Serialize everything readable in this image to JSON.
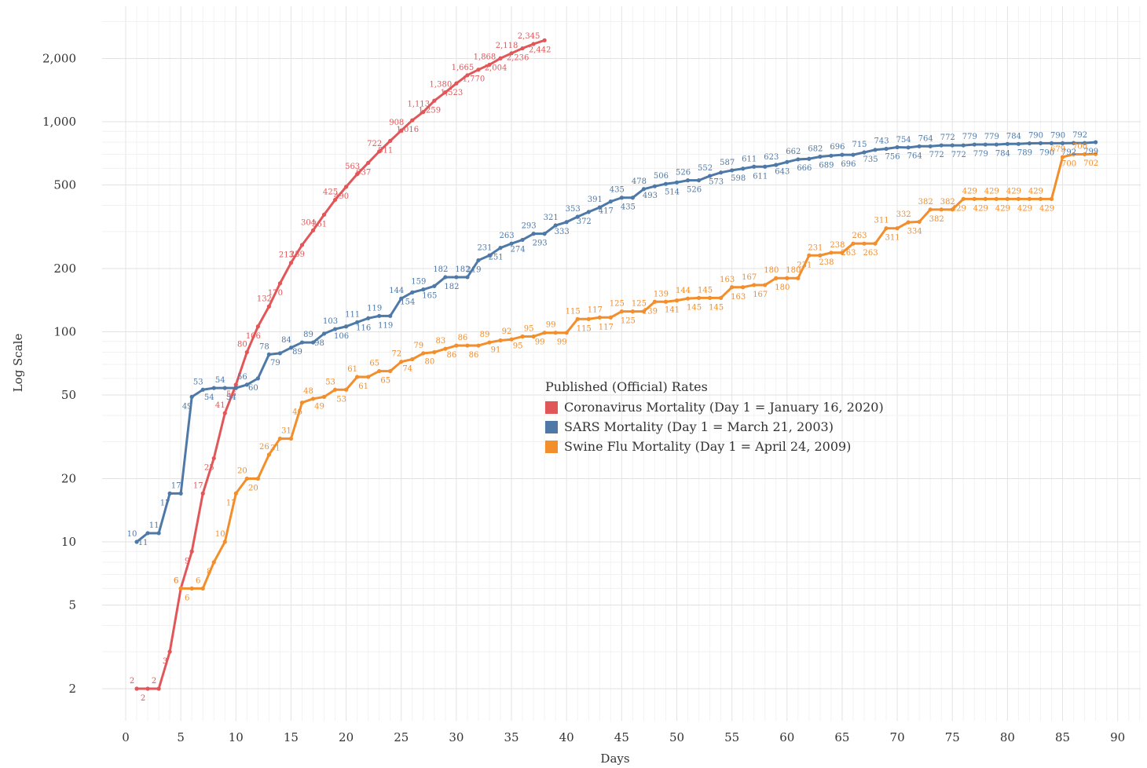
{
  "chart_data": {
    "type": "line",
    "title": "",
    "xlabel": "Days",
    "ylabel": "Log Scale",
    "yscale": "log",
    "xlim": [
      -1,
      92
    ],
    "ylim": [
      1.6,
      3300
    ],
    "xticks": [
      0,
      5,
      10,
      15,
      20,
      25,
      30,
      35,
      40,
      45,
      50,
      55,
      60,
      65,
      70,
      75,
      80,
      85,
      90
    ],
    "yticks": [
      2,
      5,
      10,
      20,
      50,
      100,
      200,
      500,
      1000,
      2000
    ],
    "ytick_labels": [
      "2",
      "5",
      "10",
      "20",
      "50",
      "100",
      "200",
      "500",
      "1,000",
      "2,000"
    ],
    "grid": true,
    "legend": {
      "title": "Published (Official) Rates",
      "placement": "center-right",
      "entries": [
        "Coronavirus Mortality (Day 1 = January 16, 2020)",
        "SARS Mortality (Day 1 = March 21, 2003)",
        "Swine Flu Mortality (Day 1 = April 24, 2009)"
      ]
    },
    "series": [
      {
        "name": "Coronavirus Mortality (Day 1 = January 16, 2020)",
        "color": "#e15759",
        "x": [
          1,
          2,
          3,
          4,
          5,
          6,
          7,
          8,
          9,
          10,
          11,
          12,
          13,
          14,
          15,
          16,
          17,
          18,
          19,
          20,
          21,
          22,
          23,
          24,
          25,
          26,
          27,
          28,
          29,
          30,
          31,
          32,
          33,
          34,
          35,
          36,
          37,
          38
        ],
        "y": [
          2,
          2,
          2,
          3,
          6,
          9,
          17,
          25,
          41,
          56,
          80,
          106,
          132,
          170,
          213,
          259,
          304,
          361,
          425,
          490,
          563,
          637,
          722,
          811,
          908,
          1016,
          1113,
          1259,
          1380,
          1523,
          1665,
          1770,
          1868,
          2004,
          2118,
          2236,
          2345,
          2442
        ]
      },
      {
        "name": "SARS Mortality (Day 1 = March 21, 2003)",
        "color": "#4e79a7",
        "x": [
          1,
          2,
          3,
          4,
          5,
          6,
          7,
          8,
          9,
          10,
          11,
          12,
          13,
          14,
          15,
          16,
          17,
          18,
          19,
          20,
          21,
          22,
          23,
          24,
          25,
          26,
          27,
          28,
          29,
          30,
          31,
          32,
          33,
          34,
          35,
          36,
          37,
          38,
          39,
          40,
          41,
          42,
          43,
          44,
          45,
          46,
          47,
          48,
          49,
          50,
          51,
          52,
          53,
          54,
          55,
          56,
          57,
          58,
          59,
          60,
          61,
          62,
          63,
          64,
          65,
          66,
          67,
          68,
          69,
          70,
          71,
          72,
          73,
          74,
          75,
          76,
          77,
          78,
          79,
          80,
          81,
          82,
          83,
          84,
          85,
          86,
          87,
          88
        ],
        "y": [
          10,
          11,
          11,
          17,
          17,
          49,
          53,
          54,
          54,
          54,
          56,
          60,
          78,
          79,
          84,
          89,
          89,
          98,
          103,
          106,
          111,
          116,
          119,
          119,
          144,
          154,
          159,
          165,
          182,
          182,
          182,
          219,
          231,
          251,
          263,
          274,
          293,
          293,
          321,
          333,
          353,
          372,
          391,
          417,
          435,
          435,
          478,
          493,
          506,
          514,
          526,
          526,
          552,
          573,
          587,
          598,
          611,
          611,
          623,
          643,
          662,
          666,
          682,
          689,
          696,
          696,
          715,
          735,
          743,
          756,
          754,
          764,
          764,
          772,
          772,
          772,
          779,
          779,
          779,
          784,
          784,
          789,
          790,
          790,
          790,
          792,
          792,
          799
        ]
      },
      {
        "name": "Swine Flu Mortality (Day 1 = April 24, 2009)",
        "color": "#f28e2b",
        "x": [
          5,
          6,
          7,
          8,
          9,
          10,
          11,
          12,
          13,
          14,
          15,
          16,
          17,
          18,
          19,
          20,
          21,
          22,
          23,
          24,
          25,
          26,
          27,
          28,
          29,
          30,
          31,
          32,
          33,
          34,
          35,
          36,
          37,
          38,
          39,
          40,
          41,
          42,
          43,
          44,
          45,
          46,
          47,
          48,
          49,
          50,
          51,
          52,
          53,
          54,
          55,
          56,
          57,
          58,
          59,
          60,
          61,
          62,
          63,
          64,
          65,
          66,
          67,
          68,
          69,
          70,
          71,
          72,
          73,
          74,
          75,
          76,
          77,
          78,
          79,
          80,
          81,
          82,
          83,
          84,
          85,
          86,
          87,
          88
        ],
        "y": [
          6,
          6,
          6,
          8,
          10,
          17,
          20,
          20,
          26,
          31,
          31,
          46,
          48,
          49,
          53,
          53,
          61,
          61,
          65,
          65,
          72,
          74,
          79,
          80,
          83,
          86,
          86,
          86,
          89,
          91,
          92,
          95,
          95,
          99,
          99,
          99,
          115,
          115,
          117,
          117,
          125,
          125,
          125,
          139,
          139,
          141,
          144,
          145,
          145,
          145,
          163,
          163,
          167,
          167,
          180,
          180,
          180,
          231,
          231,
          238,
          238,
          263,
          263,
          263,
          311,
          311,
          332,
          334,
          382,
          382,
          382,
          429,
          429,
          429,
          429,
          429,
          429,
          429,
          429,
          429,
          679,
          700,
          700,
          702
        ]
      }
    ]
  }
}
